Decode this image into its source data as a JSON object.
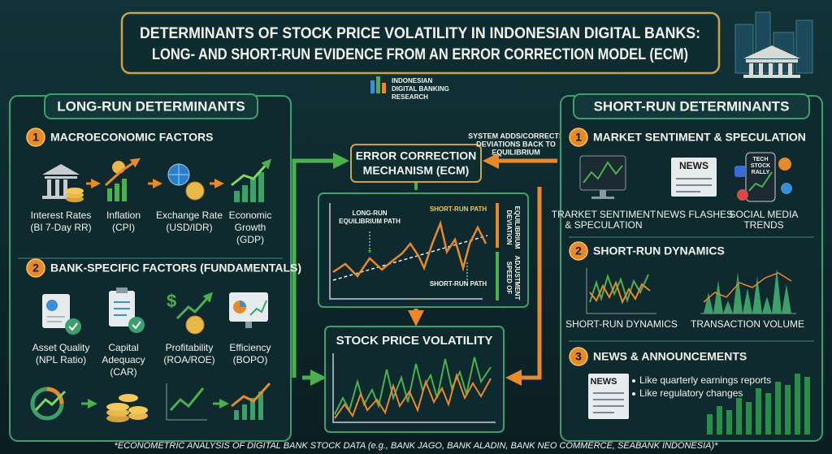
{
  "header": {
    "title_lines": [
      "DETERMINANTS OF STOCK PRICE VOLATILITY IN INDONESIAN DIGITAL BANKS:",
      "LONG- AND SHORT-RUN EVIDENCE FROM AN ERROR CORRECTION MODEL (ECM)"
    ]
  },
  "logo": {
    "lines": [
      "INDONESIAN",
      "DIGITAL BANKING",
      "RESEARCH"
    ]
  },
  "long_run": {
    "title": "LONG-RUN DETERMINANTS",
    "sections": [
      {
        "number": "1",
        "title": "MACROECONOMIC FACTORS",
        "items": [
          {
            "lines": [
              "Interest Rates",
              "(BI 7-Day RR)"
            ]
          },
          {
            "lines": [
              "Inflation",
              "(CPI)"
            ]
          },
          {
            "lines": [
              "Exchange Rate",
              "(USD/IDR)"
            ]
          },
          {
            "lines": [
              "Economic",
              "Growth",
              "(GDP)"
            ]
          }
        ]
      },
      {
        "number": "2",
        "title": "BANK-SPECIFIC FACTORS (FUNDAMENTALS)",
        "items": [
          {
            "lines": [
              "Asset Quality",
              "(NPL Ratio)"
            ]
          },
          {
            "lines": [
              "Capital",
              "Adequacy",
              "(CAR)"
            ]
          },
          {
            "lines": [
              "Profitability",
              "(ROA/ROE)"
            ]
          },
          {
            "lines": [
              "Efficiency",
              "(BOPO)"
            ]
          }
        ]
      }
    ]
  },
  "ecm": {
    "title_lines": [
      "ERROR CORRECTION",
      "MECHANISM (ECM)"
    ],
    "note_lines": [
      "SYSTEM ADDS/CORRECTS",
      "DEVIATIONS BACK TO",
      "EQUILIBRIUM"
    ],
    "chart_labels": {
      "long_run_path": [
        "LONG-RUN",
        "EQUILIBRIUM PATH"
      ],
      "short_run_path_top": "SHORT-RUN PATH",
      "short_run_path_bottom": "SHORT-RUN PATH",
      "deviation": [
        "DEVIATION",
        "EQUILIBRIUM"
      ],
      "speed": [
        "SPEED OF",
        "ADJUSTMENT"
      ]
    }
  },
  "volatility": {
    "title": "STOCK PRICE VOLATILITY"
  },
  "short_run": {
    "title": "SHORT-RUN DETERMINANTS",
    "sections": [
      {
        "number": "1",
        "title": "MARKET SENTIMENT & SPECULATION",
        "items": [
          {
            "lines": [
              "TRARKET SENTIMENT",
              "& SPECULATION"
            ]
          },
          {
            "lines": [
              "NEWS FLASHES"
            ]
          },
          {
            "lines": [
              "SOCIAL MEDIA",
              "TRENDS"
            ]
          }
        ],
        "icon_texts": [
          "NEWS",
          [
            "TECH",
            "STOCK",
            "RALLY"
          ]
        ]
      },
      {
        "number": "2",
        "title": "SHORT-RUN DYNAMICS",
        "items": [
          {
            "lines": [
              "SHORT-RUN DYNAMICS"
            ]
          },
          {
            "lines": [
              "TRANSACTION VOLUME"
            ]
          }
        ]
      },
      {
        "number": "3",
        "title": "NEWS & ANNOUNCEMENTS",
        "bullets": [
          "Like quarterly earnings reports",
          "Like regulatory changes"
        ],
        "icon_text": "NEWS"
      }
    ]
  },
  "footer": "*ECONOMETRIC ANALYSIS OF DIGITAL BANK STOCK DATA (e.g., BANK JAGO, BANK ALADIN, BANK NEO COMMERCE, SEABANK INDONESIA)*"
}
